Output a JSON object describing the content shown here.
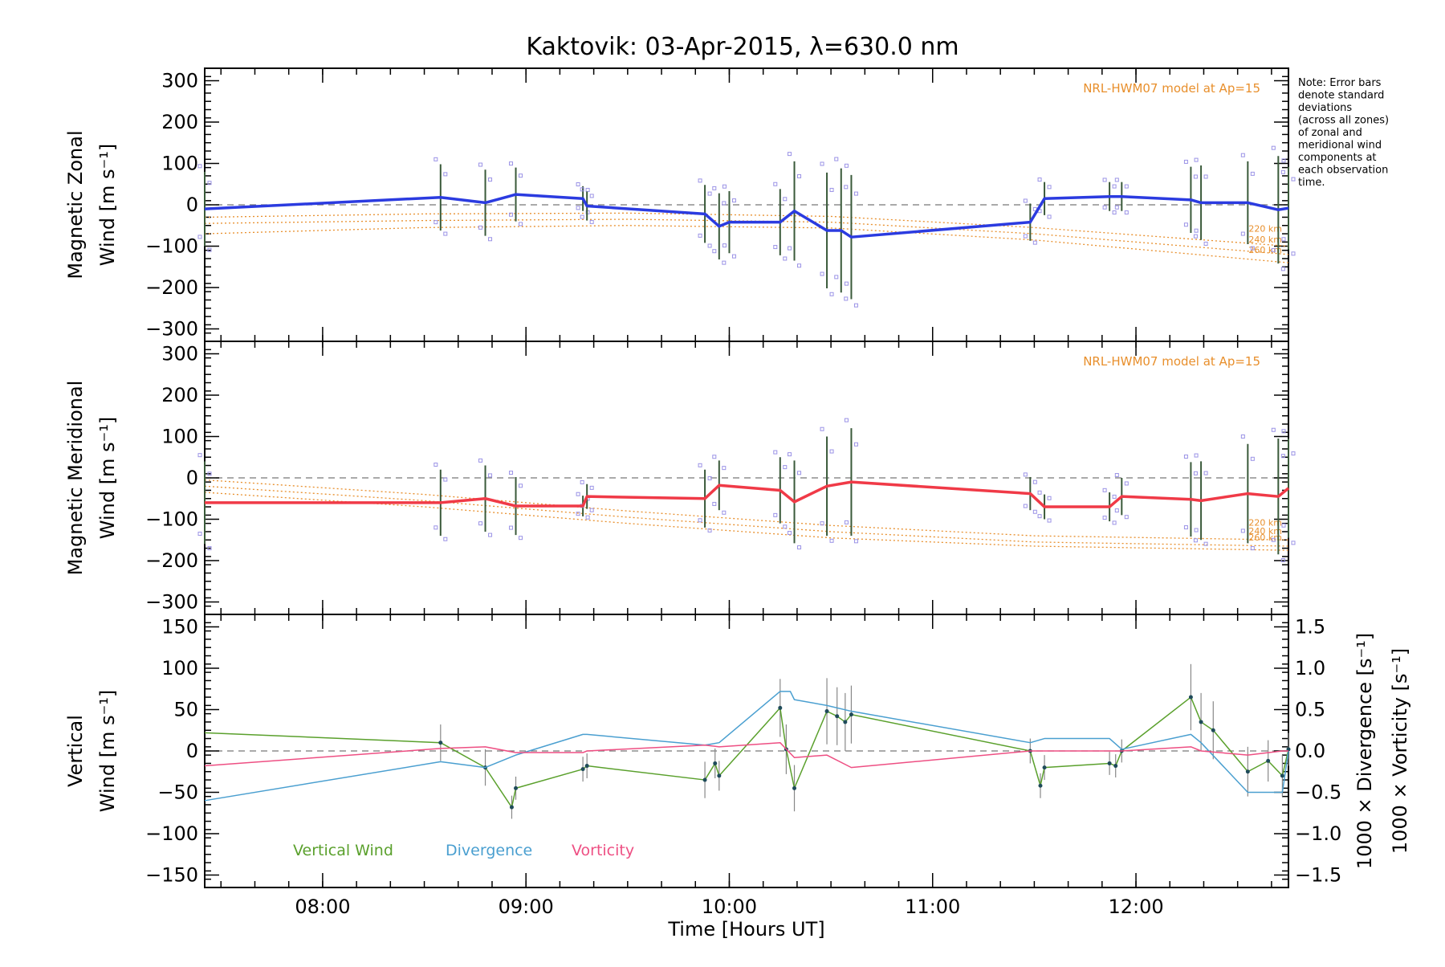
{
  "title": "Kaktovik: 03-Apr-2015, λ=630.0 nm",
  "note": [
    "Note: Error bars",
    "denote standard",
    "deviations",
    "(across all zones)",
    "of zonal and",
    "meridional wind",
    "components at",
    "each observation",
    "time."
  ],
  "colors": {
    "zonal": "#2b3be0",
    "meridional": "#f03a47",
    "vertical": "#5aa02c",
    "divergence": "#4a9fd0",
    "vorticity": "#ee4f83",
    "model": "#e88f2c",
    "zone_points": "#9b93e6",
    "errorbar": "#555555"
  },
  "chart_data": [
    {
      "type": "line",
      "panel": "zonal",
      "ylabel_lines": [
        "Magnetic Zonal",
        "Wind [m s⁻¹]"
      ],
      "ylim": [
        -330,
        330
      ],
      "y_ticks": [
        300,
        200,
        100,
        0,
        -100,
        -200,
        -300
      ],
      "y_tick_labels": [
        "300",
        "200",
        "100",
        "0",
        "−100",
        "−200",
        "−300"
      ],
      "xlim": [
        7.42,
        12.75
      ],
      "model_label": "NRL-HWM07 model at Ap=15",
      "model_series": [
        {
          "name": "220 km",
          "x": [
            7.42,
            8.5,
            9.5,
            10.5,
            11.5,
            12.75
          ],
          "y": [
            -30,
            -22,
            -20,
            -28,
            -55,
            -100
          ]
        },
        {
          "name": "240 km",
          "x": [
            7.42,
            8.5,
            9.5,
            10.5,
            11.5,
            12.75
          ],
          "y": [
            -45,
            -38,
            -35,
            -42,
            -70,
            -120
          ]
        },
        {
          "name": "260 km",
          "x": [
            7.42,
            8.5,
            9.5,
            10.5,
            11.5,
            12.75
          ],
          "y": [
            -70,
            -55,
            -50,
            -56,
            -85,
            -140
          ]
        }
      ],
      "series": [
        {
          "x": [
            7.42,
            8.58,
            8.8,
            8.95,
            9.28,
            9.3,
            9.88,
            9.95,
            10.0,
            10.25,
            10.32,
            10.48,
            10.55,
            10.6,
            11.48,
            11.55,
            11.87,
            11.93,
            12.27,
            12.32,
            12.55,
            12.7,
            12.75
          ],
          "y": [
            -10,
            18,
            5,
            25,
            15,
            -3,
            -22,
            -52,
            -42,
            -42,
            -15,
            -62,
            -62,
            -78,
            -42,
            15,
            20,
            20,
            12,
            5,
            5,
            -12,
            -8
          ],
          "err": [
            90,
            80,
            80,
            65,
            30,
            35,
            70,
            80,
            75,
            80,
            120,
            140,
            150,
            150,
            45,
            40,
            35,
            35,
            80,
            90,
            100,
            130,
            100
          ]
        }
      ]
    },
    {
      "type": "line",
      "panel": "meridional",
      "ylabel_lines": [
        "Magnetic Meridional",
        "Wind [m s⁻¹]"
      ],
      "ylim": [
        -330,
        330
      ],
      "y_ticks": [
        300,
        200,
        100,
        0,
        -100,
        -200,
        -300
      ],
      "y_tick_labels": [
        "300",
        "200",
        "100",
        "0",
        "−100",
        "−200",
        "−300"
      ],
      "xlim": [
        7.42,
        12.75
      ],
      "model_label": "NRL-HWM07 model at Ap=15",
      "model_series": [
        {
          "name": "220 km",
          "x": [
            7.42,
            8.5,
            9.5,
            10.5,
            11.5,
            12.75
          ],
          "y": [
            -5,
            -40,
            -80,
            -115,
            -140,
            -150
          ]
        },
        {
          "name": "240 km",
          "x": [
            7.42,
            8.5,
            9.5,
            10.5,
            11.5,
            12.75
          ],
          "y": [
            -20,
            -55,
            -95,
            -130,
            -155,
            -165
          ]
        },
        {
          "name": "260 km",
          "x": [
            7.42,
            8.5,
            9.5,
            10.5,
            11.5,
            12.75
          ],
          "y": [
            -35,
            -70,
            -110,
            -145,
            -165,
            -175
          ]
        }
      ],
      "series": [
        {
          "x": [
            7.42,
            8.58,
            8.8,
            8.95,
            9.28,
            9.3,
            9.88,
            9.95,
            10.25,
            10.32,
            10.48,
            10.6,
            11.48,
            11.55,
            11.87,
            11.93,
            12.27,
            12.32,
            12.55,
            12.7,
            12.75
          ],
          "y": [
            -60,
            -60,
            -50,
            -68,
            -68,
            -45,
            -50,
            -18,
            -30,
            -58,
            -20,
            -10,
            -38,
            -70,
            -70,
            -45,
            -52,
            -55,
            -38,
            -45,
            -25
          ],
          "err": [
            100,
            80,
            80,
            70,
            25,
            30,
            70,
            60,
            80,
            100,
            120,
            130,
            40,
            30,
            35,
            45,
            90,
            95,
            120,
            140,
            120
          ]
        }
      ]
    },
    {
      "type": "line",
      "panel": "vertical",
      "ylabel_lines": [
        "Vertical",
        "Wind [m s⁻¹]"
      ],
      "ylim": [
        -165,
        165
      ],
      "y_ticks": [
        150,
        100,
        50,
        0,
        -50,
        -100,
        -150
      ],
      "y_tick_labels": [
        "150",
        "100",
        "50",
        "0",
        "−50",
        "−100",
        "−150"
      ],
      "y2lim": [
        -1.65,
        1.65
      ],
      "y2_ticks": [
        1.5,
        1.0,
        0.5,
        0.0,
        -0.5,
        -1.0,
        -1.5
      ],
      "y2_tick_labels": [
        "1.5",
        "1.0",
        "0.5",
        "0.0",
        "−0.5",
        "−1.0",
        "−1.5"
      ],
      "y2_labels": [
        "1000 × Divergence [s⁻¹]",
        "1000 × Vorticity [s⁻¹]"
      ],
      "xlim": [
        7.42,
        12.75
      ],
      "x_ticks": [
        8,
        9,
        10,
        11,
        12
      ],
      "x_tick_labels": [
        "08:00",
        "09:00",
        "10:00",
        "11:00",
        "12:00"
      ],
      "xlabel": "Time [Hours UT]",
      "legend": [
        "Vertical Wind",
        "Divergence",
        "Vorticity"
      ],
      "series": [
        {
          "name": "Vertical Wind",
          "axis": "left",
          "x": [
            7.42,
            8.58,
            8.8,
            8.93,
            8.95,
            9.28,
            9.3,
            9.88,
            9.93,
            9.95,
            10.25,
            10.28,
            10.32,
            10.48,
            10.53,
            10.57,
            10.6,
            11.48,
            11.53,
            11.55,
            11.87,
            11.9,
            11.93,
            12.27,
            12.32,
            12.38,
            12.55,
            12.65,
            12.72,
            12.75
          ],
          "y": [
            22,
            10,
            -20,
            -68,
            -45,
            -22,
            -18,
            -35,
            -15,
            -30,
            52,
            2,
            -45,
            48,
            42,
            35,
            44,
            0,
            -42,
            -20,
            -15,
            -18,
            0,
            65,
            35,
            25,
            -25,
            -12,
            -30,
            2
          ],
          "err": [
            0,
            22,
            22,
            14,
            14,
            15,
            15,
            22,
            18,
            18,
            35,
            30,
            28,
            40,
            35,
            35,
            35,
            15,
            15,
            15,
            14,
            14,
            14,
            40,
            35,
            35,
            30,
            25,
            25,
            20
          ]
        },
        {
          "name": "Divergence",
          "axis": "right",
          "x": [
            7.42,
            8.58,
            8.8,
            8.95,
            9.28,
            9.3,
            9.88,
            9.95,
            10.25,
            10.3,
            10.32,
            10.48,
            10.6,
            11.48,
            11.55,
            11.87,
            11.93,
            12.27,
            12.32,
            12.55,
            12.72,
            12.75
          ],
          "y": [
            -0.6,
            -0.13,
            -0.2,
            -0.05,
            0.2,
            0.2,
            0.07,
            0.1,
            0.72,
            0.72,
            0.62,
            0.55,
            0.48,
            0.1,
            0.15,
            0.15,
            0.02,
            0.2,
            0.1,
            -0.5,
            -0.5,
            0.0
          ],
          "err": []
        },
        {
          "name": "Vorticity",
          "axis": "right",
          "x": [
            7.42,
            8.58,
            8.8,
            8.95,
            9.28,
            9.3,
            9.88,
            9.95,
            10.25,
            10.32,
            10.48,
            10.6,
            11.48,
            11.55,
            11.87,
            11.93,
            12.27,
            12.32,
            12.55,
            12.72,
            12.75
          ],
          "y": [
            -0.18,
            0.03,
            0.05,
            -0.02,
            -0.02,
            0.0,
            0.07,
            0.05,
            0.1,
            -0.08,
            -0.05,
            -0.2,
            0.0,
            0.0,
            0.0,
            0.0,
            0.05,
            0.0,
            -0.05,
            0.0,
            0.0
          ],
          "err": []
        }
      ]
    }
  ]
}
